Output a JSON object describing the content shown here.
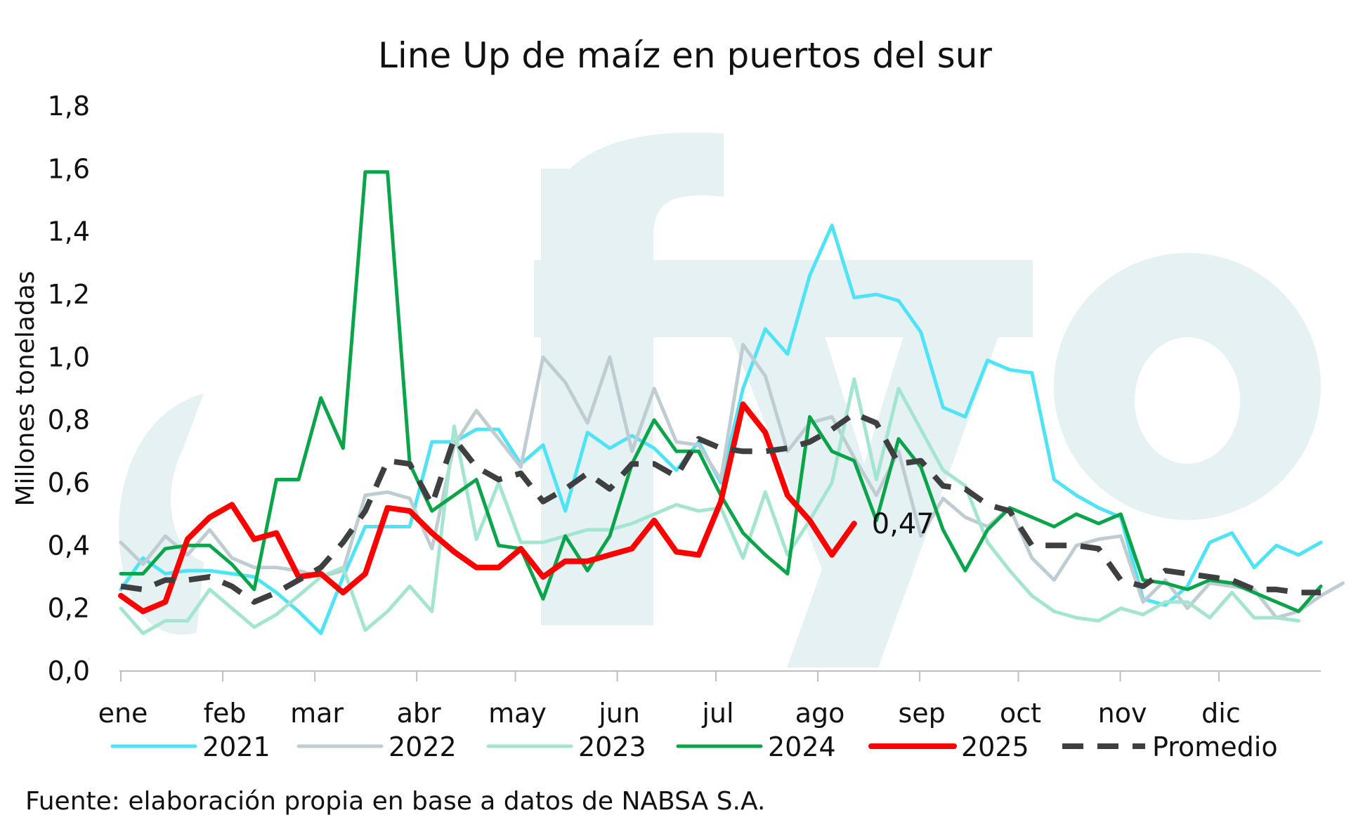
{
  "chart_data": {
    "type": "line",
    "title": "Line Up de maíz en puertos del sur",
    "ylabel": "Millones toneladas",
    "xlabel": "",
    "ylim": [
      0,
      1.8
    ],
    "yticks": [
      "0,0",
      "0,2",
      "0,4",
      "0,6",
      "0,8",
      "1,0",
      "1,2",
      "1,4",
      "1,6",
      "1,8"
    ],
    "month_labels": [
      "ene",
      "feb",
      "mar",
      "abr",
      "may",
      "jun",
      "jul",
      "ago",
      "sep",
      "oct",
      "nov",
      "dic"
    ],
    "grid": false,
    "legend_position": "bottom",
    "source": "Fuente: elaboración propia en base a datos de NABSA S.A.",
    "end_annotation": "0,47",
    "watermark": "ofyo",
    "x_unit": "week of year",
    "series": [
      {
        "name": "2021",
        "color": "#4ee3f5",
        "dash": false,
        "width": 5,
        "values": [
          0.26,
          0.36,
          0.31,
          0.32,
          0.32,
          0.31,
          0.3,
          0.25,
          0.19,
          0.12,
          0.3,
          0.46,
          0.46,
          0.46,
          0.73,
          0.73,
          0.77,
          0.77,
          0.66,
          0.72,
          0.51,
          0.76,
          0.71,
          0.75,
          0.71,
          0.64,
          0.73,
          0.6,
          0.9,
          1.09,
          1.01,
          1.26,
          1.42,
          1.19,
          1.2,
          1.18,
          1.08,
          0.84,
          0.81,
          0.99,
          0.96,
          0.95,
          0.61,
          0.56,
          0.52,
          0.49,
          0.23,
          0.21,
          0.27,
          0.41,
          0.44,
          0.33,
          0.4,
          0.37,
          0.41
        ]
      },
      {
        "name": "2022",
        "color": "#bfcdd3",
        "dash": false,
        "width": 5,
        "values": [
          0.41,
          0.34,
          0.43,
          0.37,
          0.45,
          0.36,
          0.33,
          0.33,
          0.32,
          0.3,
          0.32,
          0.56,
          0.57,
          0.55,
          0.39,
          0.72,
          0.83,
          0.74,
          0.65,
          1.0,
          0.92,
          0.79,
          1.0,
          0.7,
          0.9,
          0.73,
          0.72,
          0.61,
          1.04,
          0.94,
          0.7,
          0.79,
          0.81,
          0.68,
          0.56,
          0.7,
          0.43,
          0.55,
          0.49,
          0.46,
          0.52,
          0.36,
          0.29,
          0.4,
          0.42,
          0.43,
          0.22,
          0.29,
          0.2,
          0.28,
          0.27,
          0.26,
          0.17,
          0.19,
          0.24,
          0.28
        ]
      },
      {
        "name": "2023",
        "color": "#a3e5d0",
        "dash": false,
        "width": 5,
        "values": [
          0.2,
          0.12,
          0.16,
          0.16,
          0.26,
          0.2,
          0.14,
          0.18,
          0.24,
          0.3,
          0.33,
          0.13,
          0.19,
          0.27,
          0.19,
          0.78,
          0.42,
          0.6,
          0.41,
          0.41,
          0.43,
          0.45,
          0.45,
          0.47,
          0.5,
          0.53,
          0.51,
          0.52,
          0.36,
          0.57,
          0.37,
          0.48,
          0.6,
          0.93,
          0.61,
          0.9,
          0.77,
          0.64,
          0.59,
          0.41,
          0.32,
          0.24,
          0.19,
          0.17,
          0.16,
          0.2,
          0.18,
          0.22,
          0.22,
          0.17,
          0.25,
          0.17,
          0.17,
          0.16
        ]
      },
      {
        "name": "2024",
        "color": "#0aa44a",
        "dash": false,
        "width": 5,
        "values": [
          0.31,
          0.31,
          0.39,
          0.4,
          0.4,
          0.34,
          0.26,
          0.61,
          0.61,
          0.87,
          0.71,
          1.59,
          1.59,
          0.66,
          0.51,
          0.56,
          0.61,
          0.4,
          0.39,
          0.23,
          0.43,
          0.32,
          0.43,
          0.66,
          0.8,
          0.7,
          0.7,
          0.56,
          0.44,
          0.37,
          0.31,
          0.81,
          0.7,
          0.67,
          0.48,
          0.74,
          0.65,
          0.45,
          0.32,
          0.45,
          0.52,
          0.49,
          0.46,
          0.5,
          0.47,
          0.5,
          0.29,
          0.28,
          0.26,
          0.29,
          0.28,
          0.25,
          0.22,
          0.19,
          0.27
        ]
      },
      {
        "name": "2025",
        "color": "#ff0000",
        "dash": false,
        "width": 8,
        "values": [
          0.24,
          0.19,
          0.22,
          0.42,
          0.49,
          0.53,
          0.42,
          0.44,
          0.3,
          0.31,
          0.25,
          0.31,
          0.52,
          0.51,
          0.44,
          0.38,
          0.33,
          0.33,
          0.39,
          0.3,
          0.35,
          0.35,
          0.37,
          0.39,
          0.48,
          0.38,
          0.37,
          0.54,
          0.85,
          0.76,
          0.56,
          0.48,
          0.37,
          0.47
        ]
      },
      {
        "name": "Promedio",
        "color": "#3e3f41",
        "dash": true,
        "width": 8,
        "values": [
          0.27,
          0.26,
          0.29,
          0.29,
          0.3,
          0.27,
          0.22,
          0.25,
          0.29,
          0.33,
          0.41,
          0.51,
          0.67,
          0.66,
          0.53,
          0.74,
          0.65,
          0.61,
          0.63,
          0.54,
          0.58,
          0.63,
          0.58,
          0.66,
          0.66,
          0.62,
          0.74,
          0.71,
          0.7,
          0.7,
          0.71,
          0.73,
          0.77,
          0.82,
          0.79,
          0.66,
          0.67,
          0.59,
          0.58,
          0.53,
          0.51,
          0.4,
          0.4,
          0.4,
          0.39,
          0.29,
          0.27,
          0.32,
          0.31,
          0.3,
          0.29,
          0.26,
          0.26,
          0.25,
          0.25
        ]
      }
    ]
  }
}
